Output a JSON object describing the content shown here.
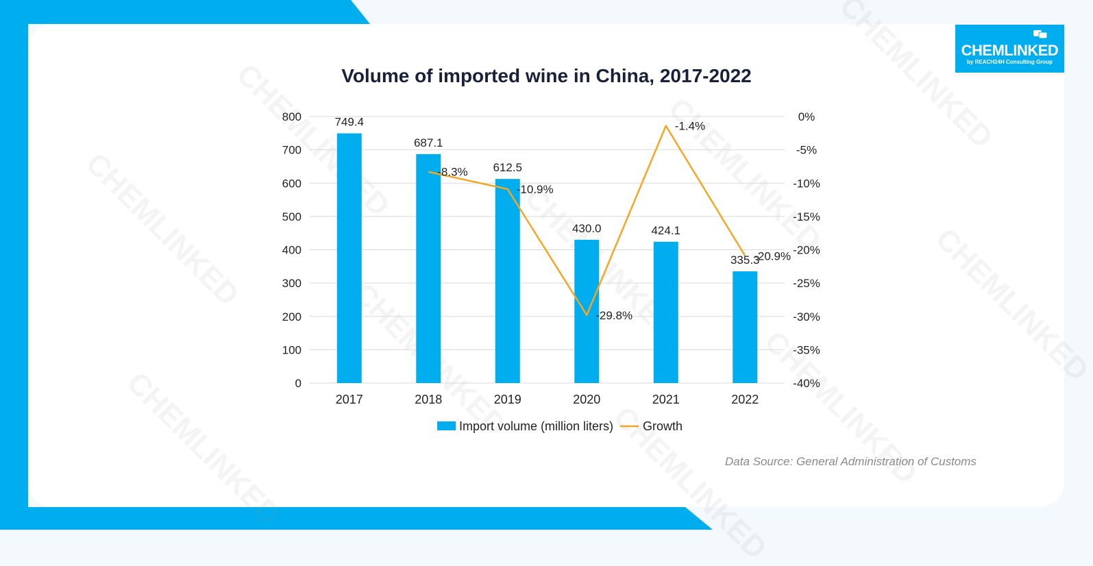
{
  "brand": {
    "name": "CHEMLINKED",
    "tagline": "by REACH24H Consulting Group"
  },
  "colors": {
    "accent": "#00aeef",
    "bar": "#00aeef",
    "line": "#f5a623",
    "title": "#17223a"
  },
  "source": "Data Source: General Administration of Customs",
  "chart_data": {
    "type": "bar",
    "title": "Volume of imported wine in China, 2017-2022",
    "categories": [
      "2017",
      "2018",
      "2019",
      "2020",
      "2021",
      "2022"
    ],
    "series": [
      {
        "name": "Import volume (million liters)",
        "type": "bar",
        "axis": "left",
        "values": [
          749.4,
          687.1,
          612.5,
          430.0,
          424.1,
          335.3
        ],
        "labels": [
          "749.4",
          "687.1",
          "612.5",
          "430.0",
          "424.1",
          "335.3"
        ]
      },
      {
        "name": "Growth",
        "type": "line",
        "axis": "right",
        "values": [
          null,
          -8.3,
          -10.9,
          -29.8,
          -1.4,
          -20.9
        ],
        "labels": [
          "",
          "-8.3%",
          "-10.9%",
          "-29.8%",
          "-1.4%",
          "-20.9%"
        ]
      }
    ],
    "y_left": {
      "ylim": [
        0,
        800
      ],
      "ticks": [
        "0",
        "100",
        "200",
        "300",
        "400",
        "500",
        "600",
        "700",
        "800"
      ]
    },
    "y_right": {
      "ylim": [
        -40,
        0
      ],
      "ticks": [
        "-40%",
        "-35%",
        "-30%",
        "-25%",
        "-20%",
        "-15%",
        "-10%",
        "-5%",
        "0%"
      ]
    },
    "grid": true,
    "legend": "bottom"
  }
}
